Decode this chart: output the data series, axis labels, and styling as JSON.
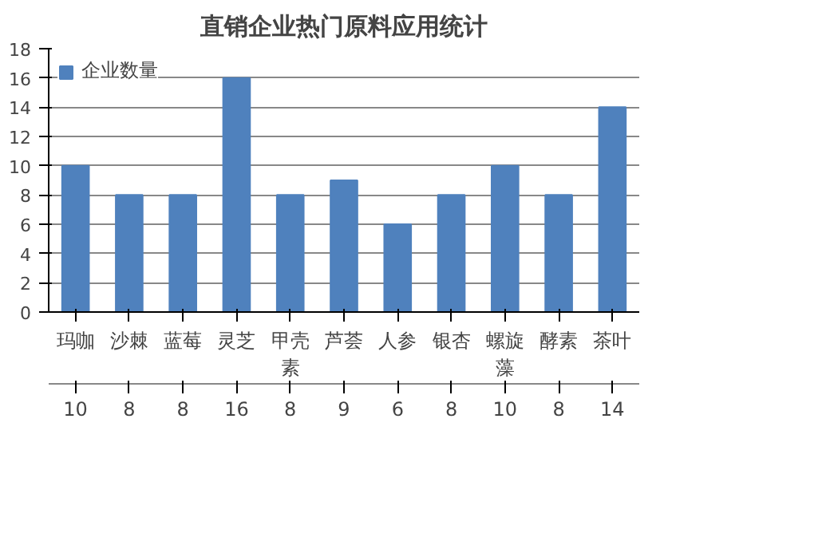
{
  "chart_data": {
    "type": "bar",
    "title": "直销企业热门原料应用统计",
    "categories": [
      "玛咖",
      "沙棘",
      "蓝莓",
      "灵芝",
      "甲壳素",
      "芦荟",
      "人参",
      "银杏",
      "螺旋藻",
      "酵素",
      "茶叶"
    ],
    "series": [
      {
        "name": "企业数量",
        "color": "#4f81bd",
        "values": [
          10,
          8,
          8,
          16,
          8,
          9,
          6,
          8,
          10,
          8,
          14
        ]
      }
    ],
    "ylim": [
      0,
      18
    ],
    "yticks": [
      0,
      2,
      4,
      6,
      8,
      10,
      12,
      14,
      16,
      18
    ],
    "grid": "y",
    "legend": "top left",
    "data_labels": true
  }
}
